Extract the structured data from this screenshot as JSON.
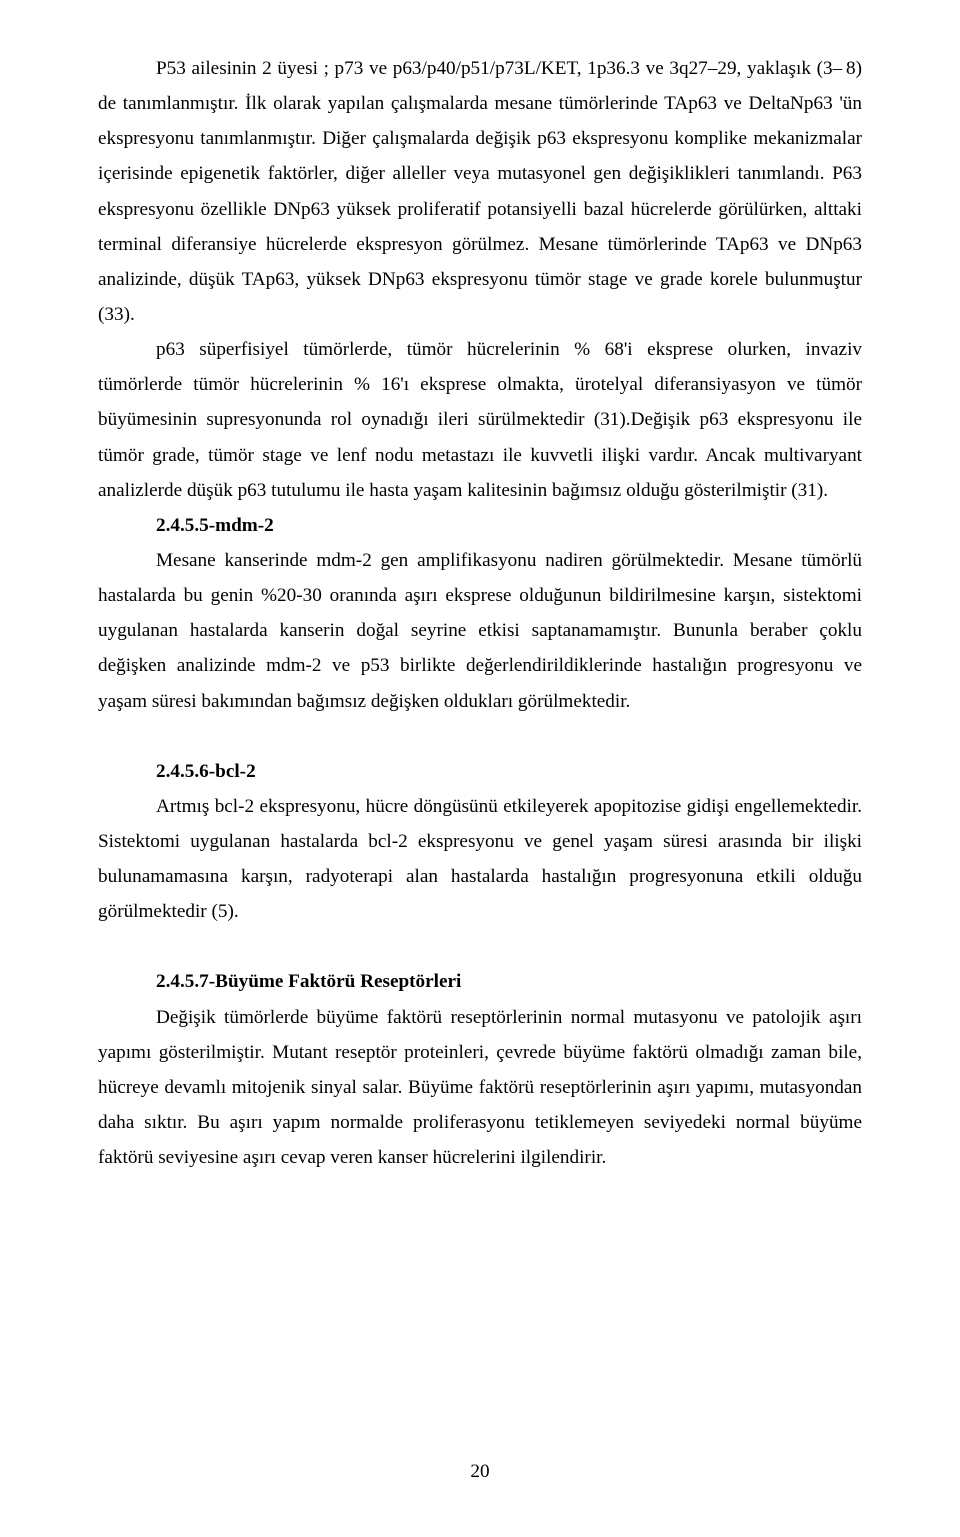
{
  "page": {
    "number": "20",
    "font_family": "Times New Roman",
    "font_size_pt": 12,
    "line_height": 1.83,
    "text_color": "#000000",
    "background_color": "#ffffff"
  },
  "content": {
    "p1": "P53 ailesinin 2 üyesi ; p73 ve p63/p40/p51/p73L/KET, 1p36.3 ve 3q27–29, yaklaşık (3– 8) de tanımlanmıştır. İlk olarak yapılan çalışmalarda mesane tümörlerinde TAp63 ve DeltaNp63 'ün ekspresyonu tanımlanmıştır. Diğer çalışmalarda değişik p63 ekspresyonu komplike mekanizmalar içerisinde epigenetik faktörler, diğer alleller veya mutasyonel gen değişiklikleri tanımlandı. P63 ekspresyonu özellikle DNp63 yüksek proliferatif potansiyelli bazal hücrelerde görülürken, alttaki terminal diferansiye hücrelerde ekspresyon görülmez. Mesane tümörlerinde TAp63 ve DNp63 analizinde, düşük TAp63, yüksek DNp63 ekspresyonu tümör stage ve grade korele bulunmuştur (33).",
    "p2": "p63 süperfisiyel tümörlerde, tümör hücrelerinin % 68'i eksprese olurken, invaziv tümörlerde tümör hücrelerinin % 16'ı eksprese olmakta, ürotelyal diferansiyasyon ve tümör büyümesinin supresyonunda rol oynadığı ileri sürülmektedir (31).Değişik p63 ekspresyonu ile tümör grade, tümör stage ve lenf nodu metastazı ile kuvvetli ilişki vardır. Ancak multivaryant analizlerde düşük p63 tutulumu  ile hasta yaşam kalitesinin  bağımsız olduğu gösterilmiştir (31).",
    "h1": "2.4.5.5-mdm-2",
    "p3": "Mesane kanserinde mdm-2 gen amplifikasyonu nadiren görülmektedir. Mesane tümörlü hastalarda bu genin %20-30 oranında aşırı eksprese olduğunun bildirilmesine karşın, sistektomi uygulanan hastalarda kanserin doğal seyrine etkisi saptanamamıştır. Bununla beraber  çoklu değişken analizinde mdm-2 ve p53 birlikte değerlendirildiklerinde hastalığın progresyonu ve yaşam süresi bakımından bağımsız değişken oldukları görülmektedir.",
    "h2": "2.4.5.6-bcl-2",
    "p4": "Artmış bcl-2 ekspresyonu, hücre döngüsünü etkileyerek apopitozise gidişi engellemektedir. Sistektomi uygulanan hastalarda bcl-2 ekspresyonu ve genel yaşam süresi arasında bir ilişki bulunamamasına karşın, radyoterapi alan hastalarda hastalığın progresyonuna etkili olduğu görülmektedir (5).",
    "h3": "2.4.5.7-Büyüme Faktörü Reseptörleri",
    "p5": "Değişik tümörlerde büyüme faktörü  reseptörlerinin normal mutasyonu ve patolojik aşırı yapımı gösterilmiştir. Mutant reseptör proteinleri, çevrede büyüme faktörü olmadığı zaman bile, hücreye devamlı mitojenik sinyal salar. Büyüme faktörü reseptörlerinin aşırı yapımı, mutasyondan daha sıktır.  Bu aşırı yapım normalde proliferasyonu tetiklemeyen seviyedeki normal büyüme faktörü seviyesine aşırı cevap veren kanser hücrelerini ilgilendirir."
  }
}
